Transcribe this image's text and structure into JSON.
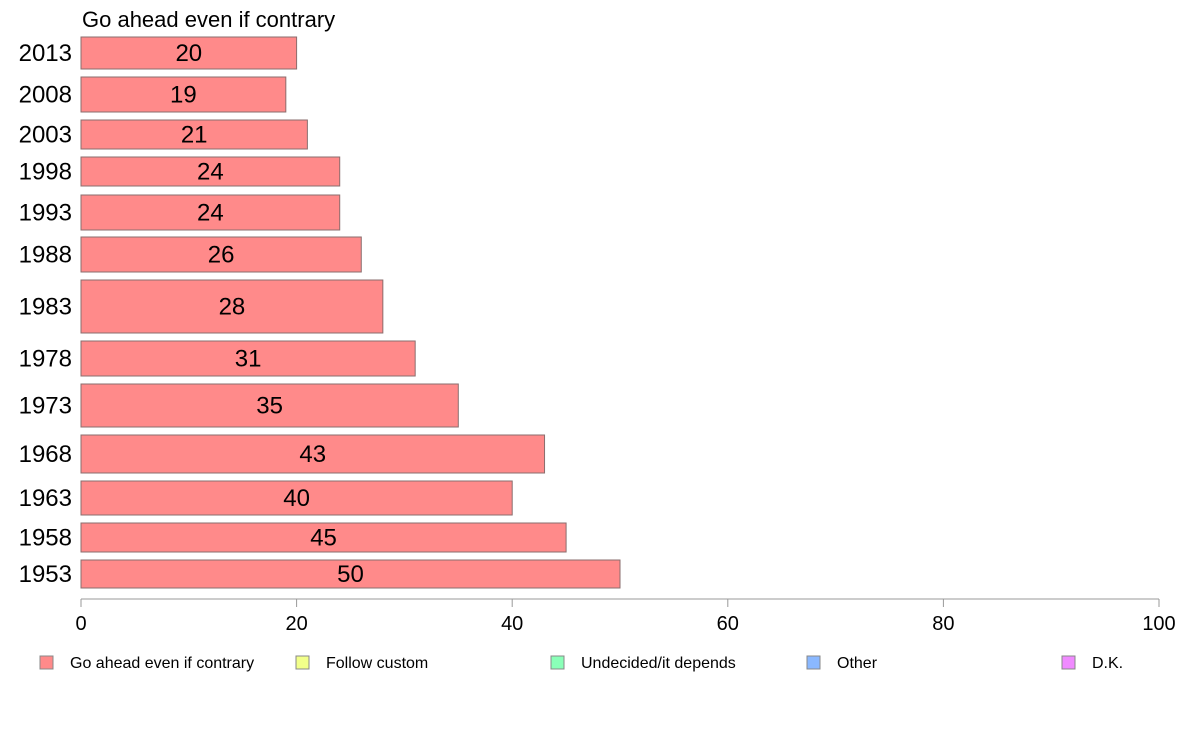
{
  "chart_data": {
    "type": "bar",
    "orientation": "horizontal",
    "title": "Go ahead even if contrary",
    "categories": [
      "2013",
      "2008",
      "2003",
      "1998",
      "1993",
      "1988",
      "1983",
      "1978",
      "1973",
      "1968",
      "1963",
      "1958",
      "1953"
    ],
    "series": [
      {
        "name": "Go ahead even if contrary",
        "color": "#ff8a8a",
        "values": [
          20,
          19,
          21,
          24,
          24,
          26,
          28,
          31,
          35,
          43,
          40,
          45,
          50
        ],
        "labels": [
          "20",
          "19",
          "21",
          "24",
          "24",
          "26",
          "28",
          "31",
          "35",
          "43",
          "40",
          "45",
          "50"
        ]
      }
    ],
    "xlim": [
      0,
      100
    ],
    "xticks": [
      "0",
      "20",
      "40",
      "60",
      "80",
      "100"
    ],
    "grid": false,
    "legend": {
      "placement": "bottom",
      "items": [
        {
          "label": "Go ahead even if contrary",
          "color": "#ff8a8a"
        },
        {
          "label": "Follow custom",
          "color": "#f2ff8a"
        },
        {
          "label": "Undecided/it depends",
          "color": "#8affb8"
        },
        {
          "label": "Other",
          "color": "#8ab8ff"
        },
        {
          "label": "D.K.",
          "color": "#f08aff"
        }
      ]
    }
  }
}
